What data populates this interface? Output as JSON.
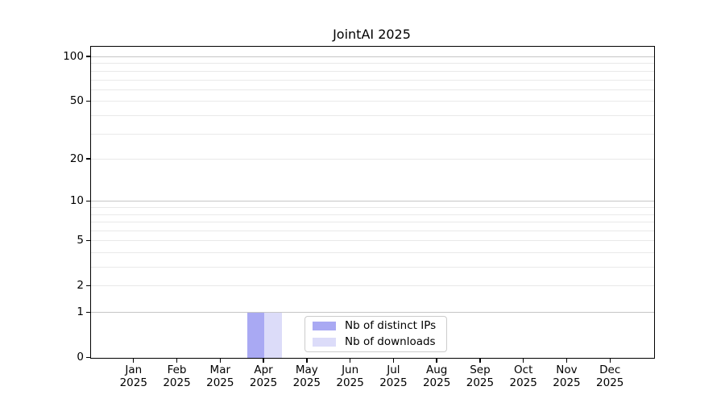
{
  "title": "JointAI 2025",
  "chart_data": {
    "type": "bar",
    "title": "JointAI 2025",
    "xlabel": "",
    "ylabel": "",
    "categories": [
      "Jan",
      "Feb",
      "Mar",
      "Apr",
      "May",
      "Jun",
      "Jul",
      "Aug",
      "Sep",
      "Oct",
      "Nov",
      "Dec"
    ],
    "year": "2025",
    "series": [
      {
        "name": "Nb of distinct IPs",
        "color": "#a9a9f3",
        "values": [
          0,
          0,
          0,
          1,
          0,
          0,
          0,
          0,
          0,
          0,
          0,
          0
        ]
      },
      {
        "name": "Nb of downloads",
        "color": "#dcdcf9",
        "values": [
          0,
          0,
          0,
          1,
          0,
          0,
          0,
          0,
          0,
          0,
          0,
          0
        ]
      }
    ],
    "y_scale": "log10(1+y)",
    "ylim": [
      0,
      117
    ],
    "y_ticks": [
      0,
      1,
      2,
      5,
      10,
      20,
      50,
      100
    ],
    "y_major_grid": [
      1,
      10,
      100
    ],
    "y_minor_grid": [
      2,
      3,
      4,
      5,
      6,
      7,
      8,
      9,
      20,
      30,
      40,
      50,
      60,
      70,
      80,
      90
    ],
    "grid": true,
    "legend_position": "lower-center-right inside plot"
  },
  "colors": {
    "background": "#ffffff",
    "spine": "#000000",
    "major_grid": "#c6c6c6",
    "minor_grid": "#e9e9e9",
    "bar_distinct_ips": "#a9a9f3",
    "bar_downloads": "#dcdcf9",
    "text": "#000000"
  }
}
